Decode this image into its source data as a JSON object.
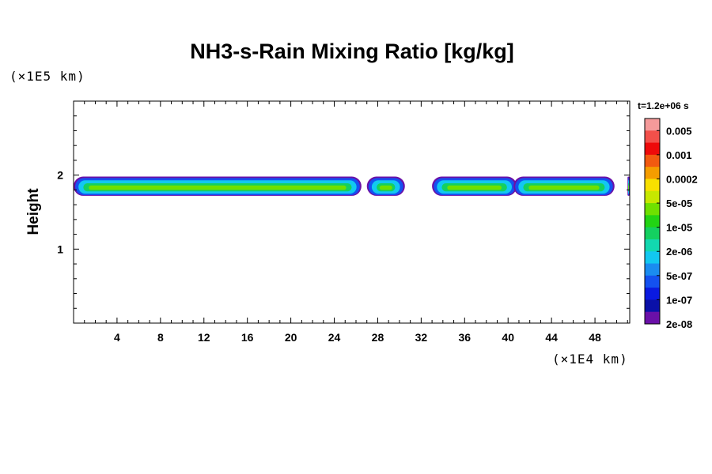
{
  "chart_data": {
    "type": "heatmap",
    "title": "NH3-s-Rain Mixing Ratio [kg/kg]",
    "xlabel": "",
    "ylabel": "Height",
    "x_unit": "(×1E4 km)",
    "y_unit": "(×1E5 km)",
    "time_label": "t=1.2e+06 s",
    "xlim": [
      0,
      51.2
    ],
    "ylim": [
      0,
      3
    ],
    "x_ticks": [
      "4",
      "8",
      "12",
      "16",
      "20",
      "24",
      "28",
      "32",
      "36",
      "40",
      "44",
      "48"
    ],
    "y_ticks": [
      "1",
      "2"
    ],
    "colorbar": {
      "labels": [
        "0.005",
        "0.001",
        "0.0002",
        "5e-05",
        "1e-05",
        "2e-06",
        "5e-07",
        "1e-07",
        "2e-08"
      ],
      "colors": [
        "#f59a9a",
        "#f3504a",
        "#ee0a0a",
        "#f25a10",
        "#f59d00",
        "#f8e000",
        "#c7e800",
        "#6fe000",
        "#22d414",
        "#14d060",
        "#12d8b0",
        "#12c8f0",
        "#1a8cf0",
        "#1451f0",
        "#0a1ae0",
        "#0a10a8",
        "#6a10a8"
      ]
    },
    "cloud_band": {
      "height_range_1e5km": [
        1.72,
        1.98
      ],
      "segments_1e4km": [
        [
          0,
          26.5
        ],
        [
          27,
          30.5
        ],
        [
          33,
          40.8
        ],
        [
          40.5,
          49.8
        ],
        [
          51,
          51.2
        ]
      ],
      "peak_level": "1e-05"
    }
  }
}
